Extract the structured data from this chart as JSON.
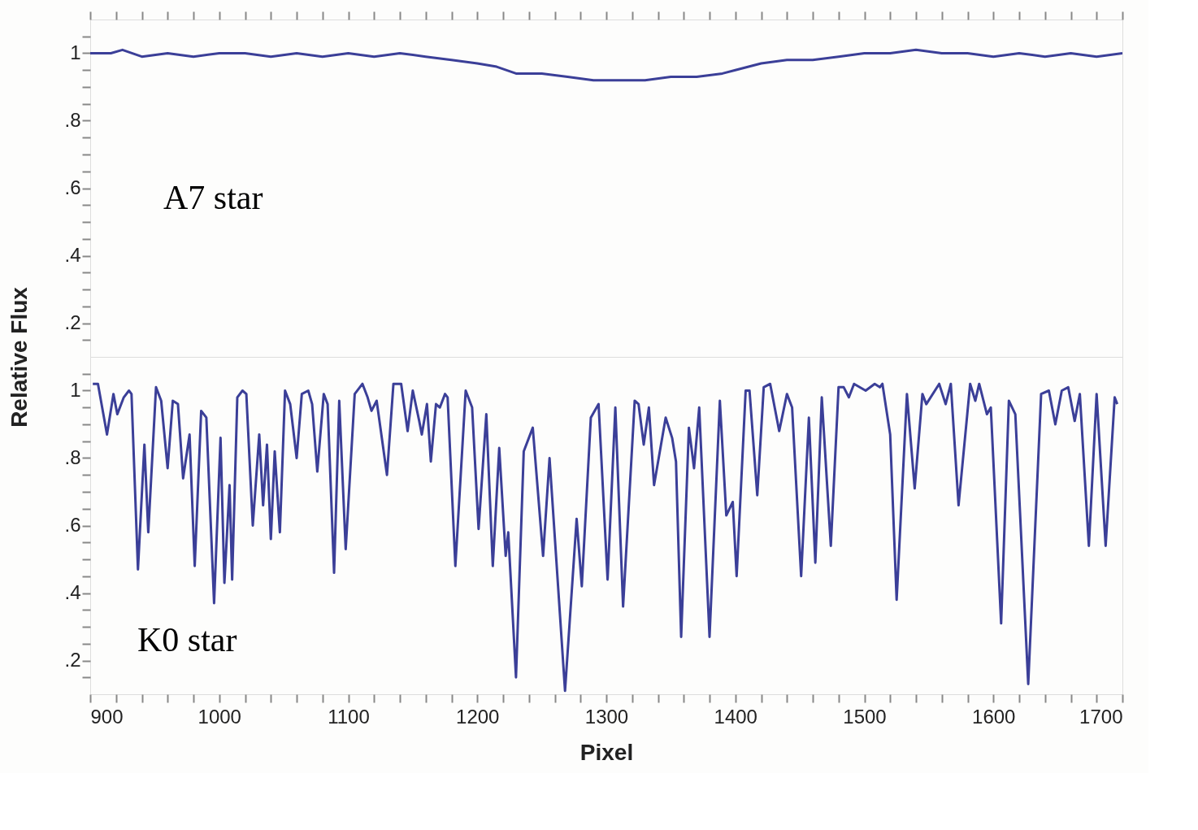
{
  "chart_data": [
    {
      "type": "line",
      "annotations": [
        "A7 star"
      ],
      "tick_labels": "y",
      "xlim": [
        900,
        1700
      ],
      "ylim": [
        0.1,
        1.1
      ],
      "xticks": [
        900,
        {
          "value": 920,
          "label": null
        },
        {
          "value": 940,
          "label": null
        },
        {
          "value": 960,
          "label": null
        },
        {
          "value": 980,
          "label": null
        },
        1000,
        {
          "value": 1020,
          "label": null
        },
        {
          "value": 1040,
          "label": null
        },
        {
          "value": 1060,
          "label": null
        },
        {
          "value": 1080,
          "label": null
        },
        1100,
        {
          "value": 1120,
          "label": null
        },
        {
          "value": 1140,
          "label": null
        },
        {
          "value": 1160,
          "label": null
        },
        {
          "value": 1180,
          "label": null
        },
        1200,
        {
          "value": 1220,
          "label": null
        },
        {
          "value": 1240,
          "label": null
        },
        {
          "value": 1260,
          "label": null
        },
        {
          "value": 1280,
          "label": null
        },
        1300,
        {
          "value": 1320,
          "label": null
        },
        {
          "value": 1340,
          "label": null
        },
        {
          "value": 1360,
          "label": null
        },
        {
          "value": 1380,
          "label": null
        },
        1400,
        {
          "value": 1420,
          "label": null
        },
        {
          "value": 1440,
          "label": null
        },
        {
          "value": 1460,
          "label": null
        },
        {
          "value": 1480,
          "label": null
        },
        1500,
        {
          "value": 1520,
          "label": null
        },
        {
          "value": 1540,
          "label": null
        },
        {
          "value": 1560,
          "label": null
        },
        {
          "value": 1580,
          "label": null
        },
        1600,
        {
          "value": 1620,
          "label": null
        },
        {
          "value": 1640,
          "label": null
        },
        {
          "value": 1660,
          "label": null
        },
        {
          "value": 1680,
          "label": null
        },
        1700
      ],
      "yticks": [
        {
          "value": 0.15,
          "label": null
        },
        {
          "value": 0.2,
          "label": ".2"
        },
        {
          "value": 0.25,
          "label": null
        },
        {
          "value": 0.3,
          "label": null
        },
        {
          "value": 0.35,
          "label": null
        },
        {
          "value": 0.4,
          "label": ".4"
        },
        {
          "value": 0.45,
          "label": null
        },
        {
          "value": 0.5,
          "label": null
        },
        {
          "value": 0.55,
          "label": null
        },
        {
          "value": 0.6,
          "label": ".6"
        },
        {
          "value": 0.65,
          "label": null
        },
        {
          "value": 0.7,
          "label": null
        },
        {
          "value": 0.75,
          "label": null
        },
        {
          "value": 0.8,
          "label": ".8"
        },
        {
          "value": 0.85,
          "label": null
        },
        {
          "value": 0.9,
          "label": null
        },
        {
          "value": 0.95,
          "label": null
        },
        {
          "value": 1,
          "label": "1"
        },
        {
          "value": 1.05,
          "label": null
        }
      ],
      "grid": false,
      "legend": false,
      "marker": "none",
      "line_style": "solid",
      "series": [
        {
          "color": "#3b3f98",
          "x": [
            900,
            916,
            925,
            940,
            960,
            980,
            1000,
            1020,
            1040,
            1060,
            1080,
            1100,
            1120,
            1140,
            1160,
            1180,
            1200,
            1215,
            1230,
            1250,
            1270,
            1290,
            1310,
            1330,
            1350,
            1370,
            1390,
            1400,
            1420,
            1440,
            1460,
            1480,
            1500,
            1520,
            1540,
            1560,
            1580,
            1600,
            1620,
            1640,
            1660,
            1680,
            1700
          ],
          "values": [
            1.0,
            1.0,
            1.01,
            0.99,
            1.0,
            0.99,
            1.0,
            1.0,
            0.99,
            1.0,
            0.99,
            1.0,
            0.99,
            1.0,
            0.99,
            0.98,
            0.97,
            0.96,
            0.94,
            0.94,
            0.93,
            0.92,
            0.92,
            0.92,
            0.93,
            0.93,
            0.94,
            0.95,
            0.97,
            0.98,
            0.98,
            0.99,
            1.0,
            1.0,
            1.01,
            1.0,
            1.0,
            0.99,
            1.0,
            0.99,
            1.0,
            0.99,
            1.0
          ]
        }
      ]
    },
    {
      "type": "line",
      "annotations": [
        "K0 star"
      ],
      "xlabel": "Pixel",
      "ylabel": "Relative Flux",
      "xlim": [
        900,
        1700
      ],
      "ylim": [
        0.1,
        1.1
      ],
      "xticks": [
        900,
        {
          "value": 920,
          "label": null
        },
        {
          "value": 940,
          "label": null
        },
        {
          "value": 960,
          "label": null
        },
        {
          "value": 980,
          "label": null
        },
        1000,
        {
          "value": 1020,
          "label": null
        },
        {
          "value": 1040,
          "label": null
        },
        {
          "value": 1060,
          "label": null
        },
        {
          "value": 1080,
          "label": null
        },
        1100,
        {
          "value": 1120,
          "label": null
        },
        {
          "value": 1140,
          "label": null
        },
        {
          "value": 1160,
          "label": null
        },
        {
          "value": 1180,
          "label": null
        },
        1200,
        {
          "value": 1220,
          "label": null
        },
        {
          "value": 1240,
          "label": null
        },
        {
          "value": 1260,
          "label": null
        },
        {
          "value": 1280,
          "label": null
        },
        1300,
        {
          "value": 1320,
          "label": null
        },
        {
          "value": 1340,
          "label": null
        },
        {
          "value": 1360,
          "label": null
        },
        {
          "value": 1380,
          "label": null
        },
        1400,
        {
          "value": 1420,
          "label": null
        },
        {
          "value": 1440,
          "label": null
        },
        {
          "value": 1460,
          "label": null
        },
        {
          "value": 1480,
          "label": null
        },
        1500,
        {
          "value": 1520,
          "label": null
        },
        {
          "value": 1540,
          "label": null
        },
        {
          "value": 1560,
          "label": null
        },
        {
          "value": 1580,
          "label": null
        },
        1600,
        {
          "value": 1620,
          "label": null
        },
        {
          "value": 1640,
          "label": null
        },
        {
          "value": 1660,
          "label": null
        },
        {
          "value": 1680,
          "label": null
        },
        1700
      ],
      "yticks": [
        {
          "value": 0.15,
          "label": null
        },
        {
          "value": 0.2,
          "label": ".2"
        },
        {
          "value": 0.25,
          "label": null
        },
        {
          "value": 0.3,
          "label": null
        },
        {
          "value": 0.35,
          "label": null
        },
        {
          "value": 0.4,
          "label": ".4"
        },
        {
          "value": 0.45,
          "label": null
        },
        {
          "value": 0.5,
          "label": null
        },
        {
          "value": 0.55,
          "label": null
        },
        {
          "value": 0.6,
          "label": ".6"
        },
        {
          "value": 0.65,
          "label": null
        },
        {
          "value": 0.7,
          "label": null
        },
        {
          "value": 0.75,
          "label": null
        },
        {
          "value": 0.8,
          "label": ".8"
        },
        {
          "value": 0.85,
          "label": null
        },
        {
          "value": 0.9,
          "label": null
        },
        {
          "value": 0.95,
          "label": null
        },
        {
          "value": 1,
          "label": "1"
        },
        {
          "value": 1.05,
          "label": null
        }
      ],
      "grid": false,
      "legend": false,
      "marker": "none",
      "line_style": "solid",
      "series": [
        {
          "color": "#3b3f98",
          "x": [
            902,
            906,
            913,
            918,
            921,
            926,
            930,
            932,
            937,
            942,
            945,
            951,
            955,
            960,
            964,
            968,
            972,
            977,
            981,
            986,
            990,
            996,
            1001,
            1004,
            1008,
            1010,
            1014,
            1018,
            1021,
            1026,
            1031,
            1034,
            1037,
            1040,
            1043,
            1047,
            1051,
            1055,
            1060,
            1064,
            1069,
            1072,
            1076,
            1081,
            1084,
            1089,
            1093,
            1098,
            1105,
            1111,
            1115,
            1118,
            1122,
            1130,
            1135,
            1141,
            1146,
            1150,
            1155,
            1157,
            1161,
            1164,
            1168,
            1171,
            1175,
            1177,
            1183,
            1191,
            1196,
            1201,
            1207,
            1212,
            1217,
            1222,
            1224,
            1230,
            1236,
            1243,
            1251,
            1256,
            1268,
            1277,
            1281,
            1288,
            1294,
            1301,
            1307,
            1313,
            1322,
            1325,
            1329,
            1333,
            1337,
            1346,
            1351,
            1354,
            1358,
            1364,
            1368,
            1372,
            1380,
            1388,
            1393,
            1398,
            1401,
            1408,
            1411,
            1417,
            1422,
            1427,
            1434,
            1440,
            1444,
            1451,
            1457,
            1462,
            1467,
            1474,
            1480,
            1484,
            1488,
            1492,
            1501,
            1508,
            1512,
            1514,
            1520,
            1525,
            1533,
            1539,
            1545,
            1548,
            1558,
            1563,
            1567,
            1573,
            1582,
            1586,
            1589,
            1595,
            1598,
            1606,
            1612,
            1617,
            1627,
            1637,
            1643,
            1648,
            1653,
            1658,
            1663,
            1667,
            1674,
            1680,
            1687,
            1694,
            1696
          ],
          "values": [
            1.02,
            1.02,
            0.87,
            0.99,
            0.93,
            0.98,
            1.0,
            0.99,
            0.47,
            0.84,
            0.58,
            1.01,
            0.97,
            0.77,
            0.97,
            0.96,
            0.74,
            0.87,
            0.48,
            0.94,
            0.92,
            0.37,
            0.86,
            0.43,
            0.72,
            0.44,
            0.98,
            1.0,
            0.99,
            0.6,
            0.87,
            0.66,
            0.84,
            0.56,
            0.82,
            0.58,
            1.0,
            0.96,
            0.8,
            0.99,
            1.0,
            0.96,
            0.76,
            0.99,
            0.96,
            0.46,
            0.97,
            0.53,
            0.99,
            1.02,
            0.98,
            0.94,
            0.97,
            0.75,
            1.02,
            1.02,
            0.88,
            1.0,
            0.91,
            0.87,
            0.96,
            0.79,
            0.96,
            0.95,
            0.99,
            0.98,
            0.48,
            1.0,
            0.95,
            0.59,
            0.93,
            0.48,
            0.83,
            0.51,
            0.58,
            0.15,
            0.82,
            0.89,
            0.51,
            0.8,
            0.11,
            0.62,
            0.42,
            0.92,
            0.96,
            0.44,
            0.95,
            0.36,
            0.97,
            0.96,
            0.84,
            0.95,
            0.72,
            0.92,
            0.86,
            0.79,
            0.27,
            0.89,
            0.77,
            0.95,
            0.27,
            0.97,
            0.63,
            0.67,
            0.45,
            1.0,
            1.0,
            0.69,
            1.01,
            1.02,
            0.88,
            0.99,
            0.95,
            0.45,
            0.92,
            0.49,
            0.98,
            0.54,
            1.01,
            1.01,
            0.98,
            1.02,
            1.0,
            1.02,
            1.01,
            1.02,
            0.87,
            0.38,
            0.99,
            0.71,
            0.99,
            0.96,
            1.02,
            0.96,
            1.02,
            0.66,
            1.02,
            0.97,
            1.02,
            0.93,
            0.95,
            0.31,
            0.97,
            0.93,
            0.13,
            0.99,
            1.0,
            0.9,
            1.0,
            1.01,
            0.91,
            0.99,
            0.54,
            0.99,
            0.54,
            0.98,
            0.96
          ]
        }
      ]
    }
  ]
}
